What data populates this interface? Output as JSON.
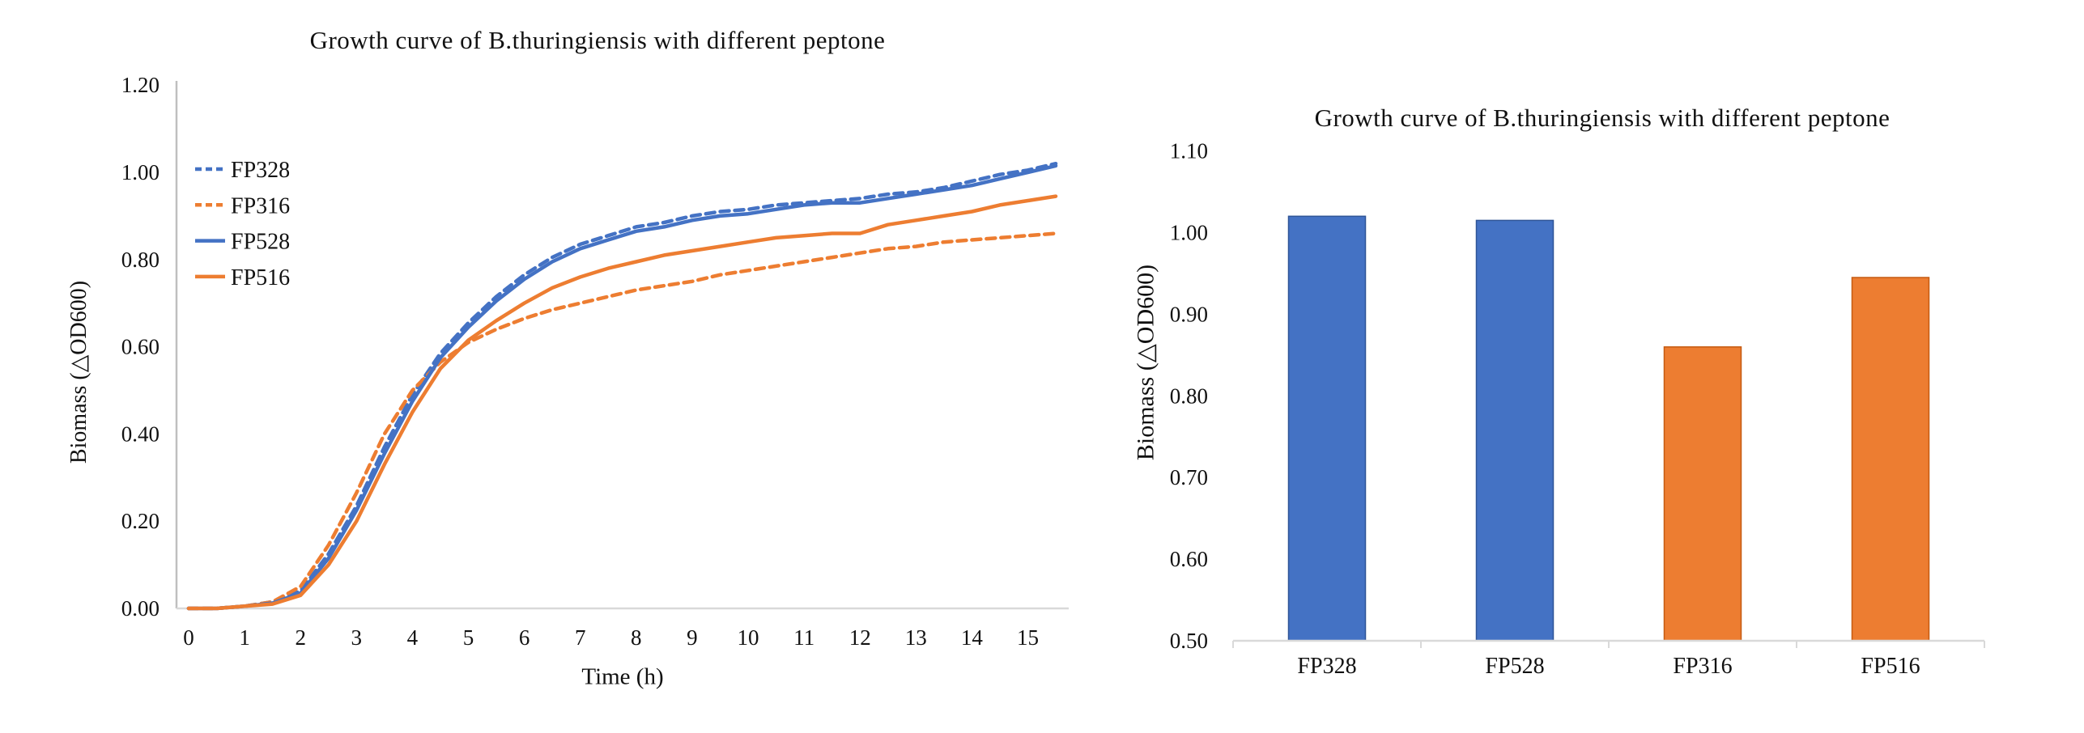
{
  "figure": {
    "background": "#FFFFFF"
  },
  "colors": {
    "blue": "#4472C4",
    "orange": "#ED7D31",
    "blue_border": "#2F5597",
    "orange_border": "#C55A11",
    "y_axis_line": "#BFBFBF",
    "x_axis_line": "#D9D9D9",
    "text": "#111111"
  },
  "chart_data": [
    {
      "type": "line",
      "title": "Growth curve of B.thuringiensis with different peptone",
      "xlabel": "Time (h)",
      "ylabel": "Biomass (△OD600)",
      "xlim": [
        0,
        15.5
      ],
      "ylim": [
        0,
        1.2
      ],
      "x_ticks": [
        0,
        1,
        2,
        3,
        4,
        5,
        6,
        7,
        8,
        9,
        10,
        11,
        12,
        13,
        14,
        15
      ],
      "y_ticks": [
        "0.00",
        "0.20",
        "0.40",
        "0.60",
        "0.80",
        "1.00",
        "1.20"
      ],
      "y_tick_step": 0.2,
      "grid": false,
      "legend_position": "inside-upper-left",
      "x": [
        0,
        0.5,
        1,
        1.5,
        2,
        2.5,
        3,
        3.5,
        4,
        4.5,
        5,
        5.5,
        6,
        6.5,
        7,
        7.5,
        8,
        8.5,
        9,
        9.5,
        10,
        10.5,
        11,
        11.5,
        12,
        12.5,
        13,
        13.5,
        14,
        14.5,
        15,
        15.5
      ],
      "series": [
        {
          "name": "FP328",
          "color": "#4472C4",
          "style": "dashed",
          "values": [
            0,
            0,
            0.005,
            0.015,
            0.04,
            0.125,
            0.235,
            0.37,
            0.49,
            0.585,
            0.655,
            0.715,
            0.765,
            0.805,
            0.835,
            0.855,
            0.875,
            0.885,
            0.9,
            0.91,
            0.915,
            0.925,
            0.93,
            0.935,
            0.94,
            0.95,
            0.955,
            0.965,
            0.98,
            0.995,
            1.005,
            1.02
          ]
        },
        {
          "name": "FP316",
          "color": "#ED7D31",
          "style": "dashed",
          "values": [
            0,
            0,
            0.005,
            0.015,
            0.05,
            0.145,
            0.265,
            0.4,
            0.5,
            0.565,
            0.61,
            0.64,
            0.665,
            0.685,
            0.7,
            0.715,
            0.73,
            0.74,
            0.75,
            0.765,
            0.775,
            0.785,
            0.795,
            0.805,
            0.815,
            0.825,
            0.83,
            0.84,
            0.845,
            0.85,
            0.855,
            0.86
          ]
        },
        {
          "name": "FP528",
          "color": "#4472C4",
          "style": "solid",
          "values": [
            0,
            0,
            0.005,
            0.012,
            0.035,
            0.115,
            0.225,
            0.355,
            0.475,
            0.575,
            0.645,
            0.705,
            0.755,
            0.795,
            0.825,
            0.845,
            0.865,
            0.875,
            0.89,
            0.9,
            0.905,
            0.915,
            0.925,
            0.93,
            0.93,
            0.94,
            0.95,
            0.96,
            0.97,
            0.985,
            1.0,
            1.015
          ]
        },
        {
          "name": "FP516",
          "color": "#ED7D31",
          "style": "solid",
          "values": [
            0,
            0,
            0.005,
            0.01,
            0.03,
            0.1,
            0.2,
            0.33,
            0.45,
            0.55,
            0.615,
            0.66,
            0.7,
            0.735,
            0.76,
            0.78,
            0.795,
            0.81,
            0.82,
            0.83,
            0.84,
            0.85,
            0.855,
            0.86,
            0.86,
            0.88,
            0.89,
            0.9,
            0.91,
            0.925,
            0.935,
            0.945
          ]
        }
      ]
    },
    {
      "type": "bar",
      "title": "Growth curve of B.thuringiensis with different peptone",
      "xlabel": "",
      "ylabel": "Biomass (△OD600)",
      "ylim": [
        0.5,
        1.1
      ],
      "y_ticks": [
        "0.50",
        "0.60",
        "0.70",
        "0.80",
        "0.90",
        "1.00",
        "1.10"
      ],
      "y_tick_step": 0.1,
      "grid": false,
      "categories": [
        "FP328",
        "FP528",
        "FP316",
        "FP516"
      ],
      "values": [
        1.02,
        1.015,
        0.86,
        0.945
      ],
      "bar_colors": [
        "#4472C4",
        "#4472C4",
        "#ED7D31",
        "#ED7D31"
      ],
      "bar_border_colors": [
        "#2F5597",
        "#2F5597",
        "#C55A11",
        "#C55A11"
      ]
    }
  ]
}
